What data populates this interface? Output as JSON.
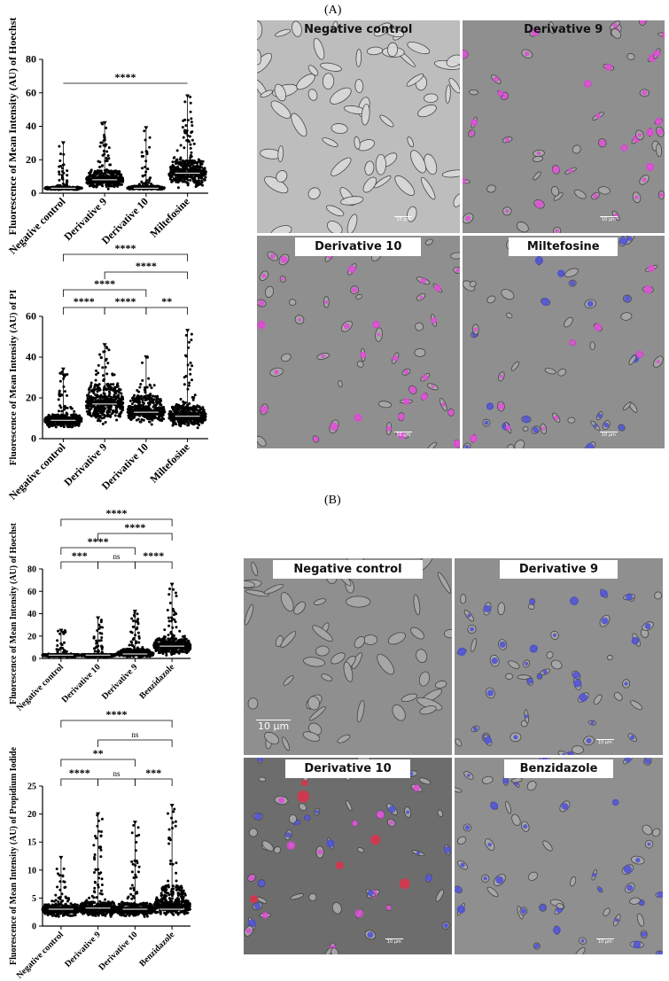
{
  "panels": {
    "A": "(A)",
    "B": "(B)"
  },
  "charts": [
    {
      "type": "scatter",
      "ylabel": "Fluorescence of Mean Intensity (AU) of Hoechst",
      "categories": [
        "Negative control",
        "Derivative 9",
        "Derivative 10",
        "Miltefosine"
      ],
      "ylim": [
        0,
        80
      ],
      "yticks": [
        0,
        20,
        40,
        60,
        80
      ],
      "series": [
        {
          "min": 2,
          "median": 3,
          "q3": 3.5,
          "max": 30
        },
        {
          "min": 2,
          "median": 8,
          "q3": 12,
          "max": 42
        },
        {
          "min": 2,
          "median": 3,
          "q3": 4,
          "max": 39
        },
        {
          "min": 2,
          "median": 12,
          "q3": 18,
          "max": 58
        }
      ],
      "comparisons": [
        {
          "from": 0,
          "to": 3,
          "label": "****"
        }
      ]
    },
    {
      "type": "scatter",
      "ylabel": "Fluorescence of Mean Intensity (AU) of PI",
      "categories": [
        "Negative control",
        "Derivative 9",
        "Derivative 10",
        "Miltefosine"
      ],
      "ylim": [
        0,
        60
      ],
      "yticks": [
        0,
        20,
        40,
        60
      ],
      "series": [
        {
          "min": 5,
          "median": 9,
          "q3": 11,
          "max": 34
        },
        {
          "min": 6,
          "median": 17,
          "q3": 24,
          "max": 46
        },
        {
          "min": 6,
          "median": 13,
          "q3": 19,
          "max": 40
        },
        {
          "min": 5,
          "median": 11,
          "q3": 15,
          "max": 53
        }
      ],
      "comparisons": [
        {
          "from": 0,
          "to": 1,
          "label": "****"
        },
        {
          "from": 1,
          "to": 2,
          "label": "****"
        },
        {
          "from": 2,
          "to": 3,
          "label": "**"
        },
        {
          "from": 0,
          "to": 2,
          "label": "****"
        },
        {
          "from": 1,
          "to": 3,
          "label": "****"
        },
        {
          "from": 0,
          "to": 3,
          "label": "****"
        }
      ]
    },
    {
      "type": "scatter",
      "ylabel": "Fluorescence of Mean Intensity (AU) of Hoechst",
      "categories": [
        "Negative control",
        "Derivative 10",
        "Derivative 9",
        "Benzidazole"
      ],
      "ylim": [
        0,
        80
      ],
      "yticks": [
        0,
        20,
        40,
        60,
        80
      ],
      "series": [
        {
          "min": 1,
          "median": 3,
          "q3": 3.5,
          "max": 25
        },
        {
          "min": 1,
          "median": 3,
          "q3": 3.5,
          "max": 36
        },
        {
          "min": 1,
          "median": 4,
          "q3": 7,
          "max": 42
        },
        {
          "min": 2,
          "median": 11,
          "q3": 16,
          "max": 66
        }
      ],
      "comparisons": [
        {
          "from": 0,
          "to": 1,
          "label": "***"
        },
        {
          "from": 1,
          "to": 2,
          "label": "ns"
        },
        {
          "from": 2,
          "to": 3,
          "label": "****"
        },
        {
          "from": 0,
          "to": 2,
          "label": "****"
        },
        {
          "from": 1,
          "to": 3,
          "label": "****"
        },
        {
          "from": 0,
          "to": 3,
          "label": "****"
        }
      ]
    },
    {
      "type": "scatter",
      "ylabel": "Fluorescence of Mean Intensity (AU) of Propidium Iodide",
      "categories": [
        "Negative control",
        "Derivative 9",
        "Derivative 10",
        "Benzidazole"
      ],
      "ylim": [
        0,
        25
      ],
      "yticks": [
        0,
        5,
        10,
        15,
        20,
        25
      ],
      "series": [
        {
          "min": 1.5,
          "median": 3,
          "q3": 3.6,
          "max": 12.2
        },
        {
          "min": 1.5,
          "median": 3.2,
          "q3": 4,
          "max": 20
        },
        {
          "min": 1.5,
          "median": 3,
          "q3": 3.8,
          "max": 18.5
        },
        {
          "min": 1.5,
          "median": 3,
          "q3": 6,
          "max": 21.5
        }
      ],
      "comparisons": [
        {
          "from": 0,
          "to": 1,
          "label": "****"
        },
        {
          "from": 1,
          "to": 2,
          "label": "ns"
        },
        {
          "from": 2,
          "to": 3,
          "label": "***"
        },
        {
          "from": 0,
          "to": 2,
          "label": "**"
        },
        {
          "from": 1,
          "to": 3,
          "label": "ns"
        },
        {
          "from": 0,
          "to": 3,
          "label": "****"
        }
      ]
    }
  ],
  "micrographs": {
    "A": [
      {
        "label": "Negative control",
        "scale": "10 µm",
        "palette": "bright",
        "fluor": "none"
      },
      {
        "label": "Derivative 9",
        "scale": "10 µm",
        "palette": "gray",
        "fluor": "magenta"
      },
      {
        "label": "Derivative 10",
        "scale": "10 µm",
        "palette": "gray",
        "fluor": "magenta"
      },
      {
        "label": "Miltefosine",
        "scale": "10 µm",
        "palette": "gray",
        "fluor": "mixed"
      }
    ],
    "B": [
      {
        "label": "Negative control",
        "scale": "10 µm",
        "palette": "gray",
        "fluor": "none"
      },
      {
        "label": "Derivative 9",
        "scale": "10 µm",
        "palette": "gray",
        "fluor": "blue"
      },
      {
        "label": "Derivative 10",
        "scale": "10 µm",
        "palette": "dark",
        "fluor": "mixed"
      },
      {
        "label": "Benzidazole",
        "scale": "10 µm",
        "palette": "gray",
        "fluor": "blue"
      }
    ]
  },
  "colors": {
    "points": "#000000",
    "magenta": "#e04ad8",
    "blue": "#4b4fd6",
    "red": "#e0304a"
  }
}
